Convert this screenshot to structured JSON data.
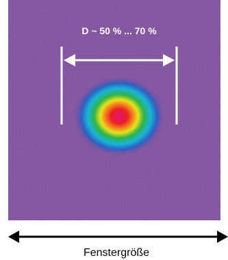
{
  "annotation": "D ~ 50 % ... 70 %",
  "window_label": "Fenstergröße"
}
